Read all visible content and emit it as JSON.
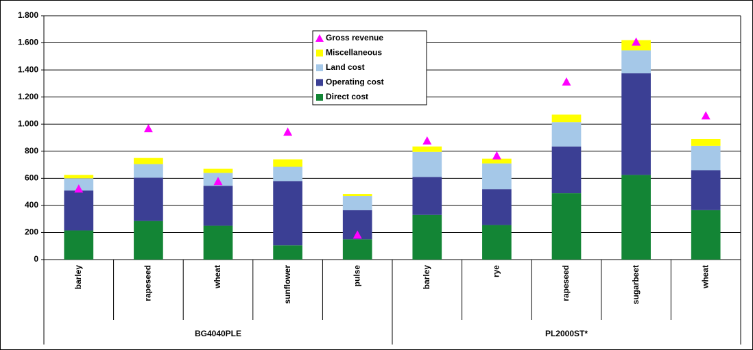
{
  "chart_data": {
    "type": "bar",
    "stacked": true,
    "groups": [
      {
        "name": "BG4040PLE",
        "categories": [
          "barley",
          "rapeseed",
          "wheat",
          "sunflower",
          "pulse"
        ]
      },
      {
        "name": "PL2000ST*",
        "categories": [
          "barley",
          "rye",
          "rapeseed",
          "sugarbeet",
          "wheat"
        ]
      }
    ],
    "series": [
      {
        "name": "Direct cost",
        "color": "#138535",
        "values": [
          215,
          285,
          250,
          105,
          150,
          330,
          255,
          490,
          625,
          365
        ]
      },
      {
        "name": "Operating cost",
        "color": "#3b3f94",
        "values": [
          295,
          320,
          295,
          475,
          215,
          280,
          265,
          345,
          750,
          295
        ]
      },
      {
        "name": "Land cost",
        "color": "#a5c8e8",
        "values": [
          90,
          100,
          95,
          105,
          105,
          185,
          190,
          180,
          170,
          180
        ]
      },
      {
        "name": "Miscellaneous",
        "color": "#ffff00",
        "values": [
          25,
          45,
          30,
          55,
          15,
          40,
          35,
          55,
          75,
          50
        ]
      },
      {
        "name": "Gross revenue",
        "color": "#ff00ff",
        "type": "scatter",
        "marker": "triangle",
        "values": [
          520,
          965,
          575,
          940,
          180,
          875,
          765,
          1310,
          1605,
          1060
        ]
      }
    ],
    "ylim": [
      0,
      1800
    ],
    "yticks": [
      0,
      200,
      400,
      600,
      800,
      {
        "value": 1000,
        "label": "1.000"
      },
      {
        "value": 1200,
        "label": "1.200"
      },
      {
        "value": 1400,
        "label": "1.400"
      },
      {
        "value": 1600,
        "label": "1.600"
      },
      {
        "value": 1800,
        "label": "1.800"
      }
    ],
    "grid": true,
    "legend": "top"
  }
}
